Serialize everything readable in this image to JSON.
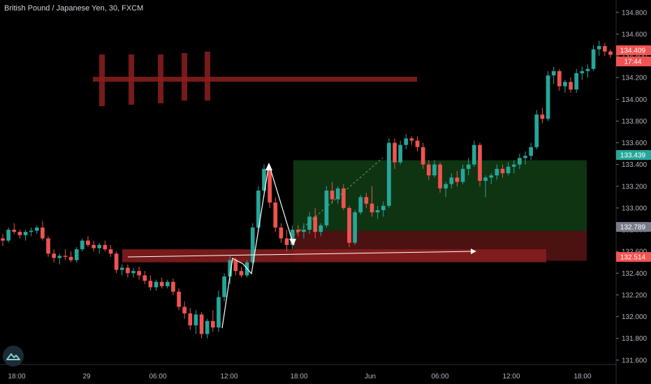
{
  "header": {
    "symbol_title": "British Pound / Japanese Yen, 30, FXCM"
  },
  "chart_data": {
    "type": "candlestick",
    "title": "British Pound / Japanese Yen, 30, FXCM",
    "y_ticks": [
      "134.800",
      "134.600",
      "134.400",
      "134.200",
      "134.000",
      "133.800",
      "133.600",
      "133.400",
      "133.200",
      "133.000",
      "132.800",
      "132.600",
      "132.400",
      "132.200",
      "132.000",
      "131.800",
      "131.600"
    ],
    "y_range": [
      131.56,
      134.85
    ],
    "x_ticks": [
      "18:00",
      "29",
      "06:00",
      "12:00",
      "18:00",
      "Jun",
      "06:00",
      "12:00",
      "18:00"
    ],
    "price_badges": [
      {
        "label": "134.409",
        "value": 134.409,
        "color": "#f05350"
      },
      {
        "label": "17:44",
        "value": 134.33,
        "color": "#f05350"
      },
      {
        "label": "133.439",
        "value": 133.439,
        "color": "#26a69a"
      },
      {
        "label": "132.789",
        "value": 132.789,
        "color": "#787b86"
      },
      {
        "label": "132.514",
        "value": 132.514,
        "color": "#f05350"
      }
    ],
    "zones": [
      {
        "name": "target-zone",
        "top": 133.439,
        "bottom": 132.789,
        "color": "#1b5e20"
      },
      {
        "name": "stop-zone",
        "top": 132.789,
        "bottom": 132.514,
        "color": "#7f1d1d"
      },
      {
        "name": "support-zone",
        "top": 132.62,
        "bottom": 132.5,
        "color": "#8b1e1e"
      }
    ],
    "colors": {
      "up": "#26a69a",
      "down": "#ef5350"
    },
    "candles": [
      [
        132.72,
        132.76,
        132.65,
        132.7
      ],
      [
        132.7,
        132.82,
        132.68,
        132.8
      ],
      [
        132.8,
        132.86,
        132.76,
        132.78
      ],
      [
        132.78,
        132.8,
        132.72,
        132.75
      ],
      [
        132.75,
        132.8,
        132.7,
        132.78
      ],
      [
        132.78,
        132.82,
        132.74,
        132.79
      ],
      [
        132.79,
        132.84,
        132.76,
        132.82
      ],
      [
        132.82,
        132.88,
        132.7,
        132.72
      ],
      [
        132.72,
        132.74,
        132.55,
        132.58
      ],
      [
        132.58,
        132.62,
        132.5,
        132.54
      ],
      [
        132.54,
        132.58,
        132.48,
        132.56
      ],
      [
        132.56,
        132.62,
        132.52,
        132.55
      ],
      [
        132.55,
        132.6,
        132.5,
        132.52
      ],
      [
        132.52,
        132.64,
        132.5,
        132.62
      ],
      [
        132.62,
        132.72,
        132.6,
        132.7
      ],
      [
        132.7,
        132.74,
        132.64,
        132.66
      ],
      [
        132.66,
        132.7,
        132.6,
        132.63
      ],
      [
        132.63,
        132.68,
        132.58,
        132.66
      ],
      [
        132.66,
        132.7,
        132.6,
        132.62
      ],
      [
        132.62,
        132.66,
        132.55,
        132.58
      ],
      [
        132.58,
        132.6,
        132.4,
        132.43
      ],
      [
        132.43,
        132.48,
        132.38,
        132.45
      ],
      [
        132.45,
        132.48,
        132.36,
        132.4
      ],
      [
        132.4,
        132.45,
        132.36,
        132.42
      ],
      [
        132.42,
        132.46,
        132.34,
        132.38
      ],
      [
        132.38,
        132.42,
        132.3,
        132.33
      ],
      [
        132.33,
        132.38,
        132.24,
        132.27
      ],
      [
        132.27,
        132.34,
        132.24,
        132.32
      ],
      [
        132.32,
        132.36,
        132.26,
        132.28
      ],
      [
        132.28,
        132.34,
        132.26,
        132.32
      ],
      [
        132.32,
        132.35,
        132.2,
        132.23
      ],
      [
        132.23,
        132.26,
        132.06,
        132.09
      ],
      [
        132.09,
        132.14,
        131.98,
        132.03
      ],
      [
        132.03,
        132.08,
        131.88,
        131.92
      ],
      [
        131.92,
        132.06,
        131.84,
        132.02
      ],
      [
        132.02,
        132.04,
        131.8,
        131.84
      ],
      [
        131.84,
        131.98,
        131.8,
        131.96
      ],
      [
        131.96,
        132.06,
        131.86,
        131.9
      ],
      [
        131.9,
        132.24,
        131.86,
        132.18
      ],
      [
        132.18,
        132.4,
        132.14,
        132.37
      ],
      [
        132.37,
        132.56,
        132.3,
        132.52
      ],
      [
        132.52,
        132.54,
        132.38,
        132.42
      ],
      [
        132.42,
        132.46,
        132.36,
        132.38
      ],
      [
        132.38,
        132.52,
        132.36,
        132.5
      ],
      [
        132.5,
        132.86,
        132.48,
        132.82
      ],
      [
        132.82,
        133.2,
        132.78,
        133.16
      ],
      [
        133.16,
        133.4,
        133.1,
        133.36
      ],
      [
        133.36,
        133.38,
        133.0,
        133.05
      ],
      [
        133.05,
        133.1,
        132.78,
        132.82
      ],
      [
        132.82,
        132.86,
        132.68,
        132.72
      ],
      [
        132.72,
        132.8,
        132.6,
        132.66
      ],
      [
        132.66,
        132.84,
        132.62,
        132.8
      ],
      [
        132.8,
        132.84,
        132.74,
        132.78
      ],
      [
        132.78,
        132.86,
        132.72,
        132.8
      ],
      [
        132.8,
        132.96,
        132.76,
        132.92
      ],
      [
        132.92,
        133.0,
        132.72,
        132.78
      ],
      [
        132.78,
        132.86,
        132.74,
        132.84
      ],
      [
        132.84,
        133.2,
        132.82,
        133.16
      ],
      [
        133.16,
        133.24,
        133.04,
        133.08
      ],
      [
        133.08,
        133.2,
        133.04,
        133.18
      ],
      [
        133.18,
        133.22,
        132.98,
        133.0
      ],
      [
        133.0,
        133.02,
        132.64,
        132.68
      ],
      [
        132.68,
        132.98,
        132.66,
        132.96
      ],
      [
        132.96,
        133.12,
        132.94,
        133.1
      ],
      [
        133.1,
        133.14,
        133.0,
        133.04
      ],
      [
        133.04,
        133.2,
        132.92,
        132.96
      ],
      [
        132.96,
        133.02,
        132.9,
        132.98
      ],
      [
        132.98,
        133.06,
        132.92,
        133.02
      ],
      [
        133.02,
        133.64,
        133.0,
        133.6
      ],
      [
        133.6,
        133.64,
        133.36,
        133.42
      ],
      [
        133.42,
        133.62,
        133.4,
        133.58
      ],
      [
        133.58,
        133.68,
        133.54,
        133.64
      ],
      [
        133.64,
        133.66,
        133.58,
        133.62
      ],
      [
        133.62,
        133.66,
        133.52,
        133.56
      ],
      [
        133.56,
        133.6,
        133.36,
        133.4
      ],
      [
        133.4,
        133.44,
        133.26,
        133.3
      ],
      [
        133.3,
        133.44,
        133.28,
        133.4
      ],
      [
        133.4,
        133.42,
        133.14,
        133.18
      ],
      [
        133.18,
        133.24,
        133.1,
        133.22
      ],
      [
        133.22,
        133.32,
        133.18,
        133.28
      ],
      [
        133.28,
        133.34,
        133.2,
        133.24
      ],
      [
        133.24,
        133.4,
        133.22,
        133.36
      ],
      [
        133.36,
        133.46,
        133.3,
        133.4
      ],
      [
        133.4,
        133.62,
        133.38,
        133.58
      ],
      [
        133.58,
        133.6,
        133.2,
        133.25
      ],
      [
        133.25,
        133.3,
        133.1,
        133.28
      ],
      [
        133.28,
        133.32,
        133.22,
        133.3
      ],
      [
        133.3,
        133.4,
        133.26,
        133.36
      ],
      [
        133.36,
        133.4,
        133.28,
        133.32
      ],
      [
        133.32,
        133.42,
        133.3,
        133.38
      ],
      [
        133.38,
        133.44,
        133.32,
        133.4
      ],
      [
        133.4,
        133.5,
        133.36,
        133.46
      ],
      [
        133.46,
        133.52,
        133.4,
        133.48
      ],
      [
        133.48,
        133.6,
        133.44,
        133.56
      ],
      [
        133.56,
        133.9,
        133.54,
        133.86
      ],
      [
        133.86,
        133.92,
        133.78,
        133.82
      ],
      [
        133.82,
        134.26,
        133.8,
        134.22
      ],
      [
        134.22,
        134.3,
        134.14,
        134.26
      ],
      [
        134.26,
        134.28,
        134.08,
        134.12
      ],
      [
        134.12,
        134.18,
        134.06,
        134.16
      ],
      [
        134.16,
        134.2,
        134.06,
        134.09
      ],
      [
        134.09,
        134.28,
        134.06,
        134.24
      ],
      [
        134.24,
        134.3,
        134.18,
        134.26
      ],
      [
        134.26,
        134.32,
        134.2,
        134.28
      ],
      [
        134.28,
        134.5,
        134.26,
        134.46
      ],
      [
        134.46,
        134.54,
        134.4,
        134.49
      ],
      [
        134.49,
        134.52,
        134.4,
        134.44
      ],
      [
        134.44,
        134.46,
        134.38,
        134.41
      ]
    ]
  }
}
